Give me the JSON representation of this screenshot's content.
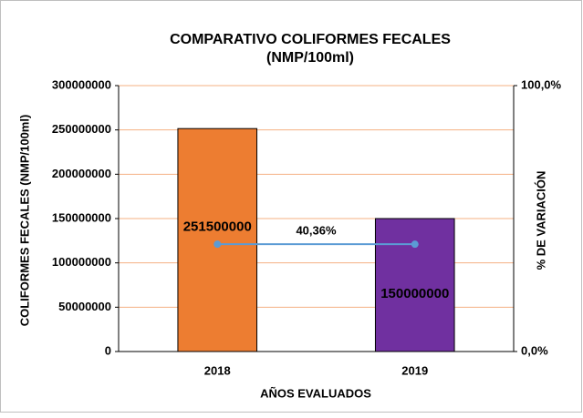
{
  "chart_data": {
    "type": "bar",
    "title": "COMPARATIVO COLIFORMES FECALES",
    "subtitle": "(NMP/100ml)",
    "x_label": "AÑOS EVALUADOS",
    "y_label": "COLIFORMES FECALES (NMP/100ml)",
    "y2_label": "% DE VARIACIÓN",
    "categories": [
      "2018",
      "2019"
    ],
    "values": [
      251500000,
      150000000
    ],
    "colors": [
      "#ed7d31",
      "#7030a0"
    ],
    "ylim": [
      0,
      300000000
    ],
    "yticks": [
      0,
      50000000,
      100000000,
      150000000,
      200000000,
      250000000,
      300000000
    ],
    "y2lim": [
      0,
      100
    ],
    "y2ticks": [
      {
        "value": 0,
        "label": "0,0%"
      },
      {
        "value": 100,
        "label": "100,0%"
      }
    ],
    "grid": true,
    "grid_color": "#f4b183",
    "series": [
      {
        "type": "line",
        "axis": "y2",
        "color": "#5b9bd5",
        "values": [
          40.36,
          40.36
        ],
        "value_labels": [
          "40,36%",
          null
        ]
      }
    ]
  }
}
